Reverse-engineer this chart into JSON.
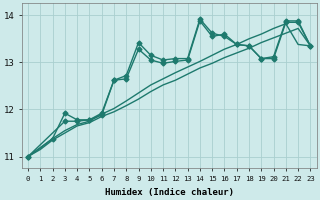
{
  "xlabel": "Humidex (Indice chaleur)",
  "background_color": "#ceeaea",
  "grid_color": "#aacfcf",
  "line_color": "#1e7a6e",
  "xlim": [
    -0.5,
    23.5
  ],
  "ylim": [
    10.75,
    14.25
  ],
  "yticks": [
    11,
    12,
    13,
    14
  ],
  "xticks": [
    0,
    1,
    2,
    3,
    4,
    5,
    6,
    7,
    8,
    9,
    10,
    11,
    12,
    13,
    14,
    15,
    16,
    17,
    18,
    19,
    20,
    21,
    22,
    23
  ],
  "series": [
    {
      "x": [
        0,
        1,
        2,
        3,
        4,
        5,
        6,
        7,
        8,
        9,
        10,
        11,
        12,
        13,
        14,
        15,
        16,
        17,
        18,
        19,
        20,
        21,
        22,
        23
      ],
      "y": [
        11.0,
        11.15,
        11.35,
        11.5,
        11.65,
        11.72,
        11.85,
        11.95,
        12.08,
        12.22,
        12.38,
        12.52,
        12.62,
        12.75,
        12.88,
        12.98,
        13.1,
        13.2,
        13.3,
        13.42,
        13.52,
        13.62,
        13.72,
        13.35
      ],
      "marker": false,
      "linewidth": 1.0
    },
    {
      "x": [
        0,
        1,
        2,
        3,
        4,
        5,
        6,
        7,
        8,
        9,
        10,
        11,
        12,
        13,
        14,
        15,
        16,
        17,
        18,
        19,
        20,
        21,
        22,
        23
      ],
      "y": [
        11.0,
        11.18,
        11.38,
        11.55,
        11.68,
        11.75,
        11.9,
        12.02,
        12.18,
        12.35,
        12.52,
        12.65,
        12.78,
        12.9,
        13.02,
        13.15,
        13.28,
        13.38,
        13.5,
        13.6,
        13.72,
        13.82,
        13.38,
        13.35
      ],
      "marker": false,
      "linewidth": 1.0
    },
    {
      "x": [
        0,
        2,
        3,
        4,
        5,
        6,
        7,
        8,
        9,
        10,
        11,
        12,
        13,
        14,
        15,
        16,
        17,
        18,
        19,
        20,
        21,
        22,
        23
      ],
      "y": [
        11.0,
        11.38,
        11.92,
        11.78,
        11.78,
        11.88,
        12.62,
        12.72,
        13.42,
        13.15,
        13.05,
        13.08,
        13.08,
        13.92,
        13.62,
        13.55,
        13.38,
        13.35,
        13.08,
        13.12,
        13.88,
        13.88,
        13.35
      ],
      "marker": true,
      "linewidth": 1.0
    },
    {
      "x": [
        0,
        3,
        4,
        5,
        6,
        7,
        8,
        9,
        10,
        11,
        12,
        13,
        14,
        15,
        16,
        17,
        18,
        19,
        20,
        21,
        22,
        23
      ],
      "y": [
        11.0,
        11.75,
        11.75,
        11.78,
        11.92,
        12.62,
        12.65,
        13.28,
        13.05,
        12.98,
        13.02,
        13.05,
        13.88,
        13.55,
        13.6,
        13.38,
        13.35,
        13.08,
        13.08,
        13.85,
        13.85,
        13.35
      ],
      "marker": true,
      "linewidth": 1.0
    }
  ]
}
